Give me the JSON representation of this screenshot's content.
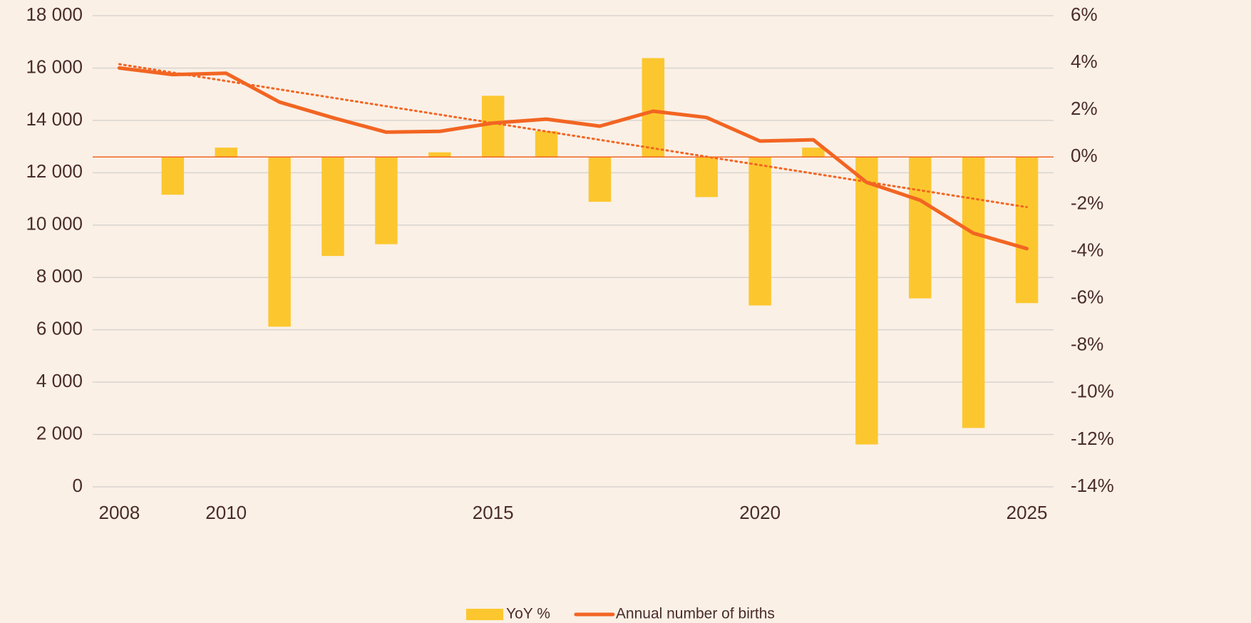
{
  "chart_data": {
    "type": "bar_line",
    "x": [
      2008,
      2009,
      2010,
      2011,
      2012,
      2013,
      2014,
      2015,
      2016,
      2017,
      2018,
      2019,
      2020,
      2021,
      2022,
      2023,
      2024,
      2025
    ],
    "xlim": [
      2007.5,
      2025.5
    ],
    "xticks": [
      2008,
      2010,
      2015,
      2020,
      2025
    ],
    "series": [
      {
        "name": "YoY %",
        "type": "bar",
        "axis": "y2",
        "color": "#fcc72e",
        "values": [
          null,
          -1.6,
          0.4,
          -7.2,
          -4.2,
          -3.7,
          0.2,
          2.6,
          1.1,
          -1.9,
          4.2,
          -1.7,
          -6.3,
          0.4,
          -12.2,
          -6.0,
          -11.5,
          -6.2
        ]
      },
      {
        "name": "Annual number of births",
        "type": "line",
        "axis": "y",
        "color": "#f26522",
        "trendline": "linear",
        "values": [
          16000,
          15750,
          15800,
          14700,
          14100,
          13550,
          13580,
          13900,
          14050,
          13780,
          14350,
          14110,
          13210,
          13260,
          11630,
          10950,
          9690,
          9100
        ]
      }
    ],
    "ylim": [
      0,
      18000
    ],
    "yticks": [
      0,
      {
        "value": 2000,
        "label": "2 000"
      },
      {
        "value": 4000,
        "label": "4 000"
      },
      {
        "value": 6000,
        "label": "6 000"
      },
      {
        "value": 8000,
        "label": "8 000"
      },
      {
        "value": 10000,
        "label": "10 000"
      },
      {
        "value": 12000,
        "label": "12 000"
      },
      {
        "value": 14000,
        "label": "14 000"
      },
      {
        "value": 16000,
        "label": "16 000"
      },
      {
        "value": 18000,
        "label": "18 000"
      }
    ],
    "y2lim": [
      -14,
      6
    ],
    "y2ticks": [
      {
        "value": -14,
        "label": "-14%"
      },
      {
        "value": -12,
        "label": "-12%"
      },
      {
        "value": -10,
        "label": "-10%"
      },
      {
        "value": -8,
        "label": "-8%"
      },
      {
        "value": -6,
        "label": "-6%"
      },
      {
        "value": -4,
        "label": "-4%"
      },
      {
        "value": -2,
        "label": "-2%"
      },
      {
        "value": 0,
        "label": "0%"
      },
      {
        "value": 2,
        "label": "2%"
      },
      {
        "value": 4,
        "label": "4%"
      },
      {
        "value": 6,
        "label": "6%"
      }
    ],
    "grid": true,
    "legend": "bottom"
  }
}
